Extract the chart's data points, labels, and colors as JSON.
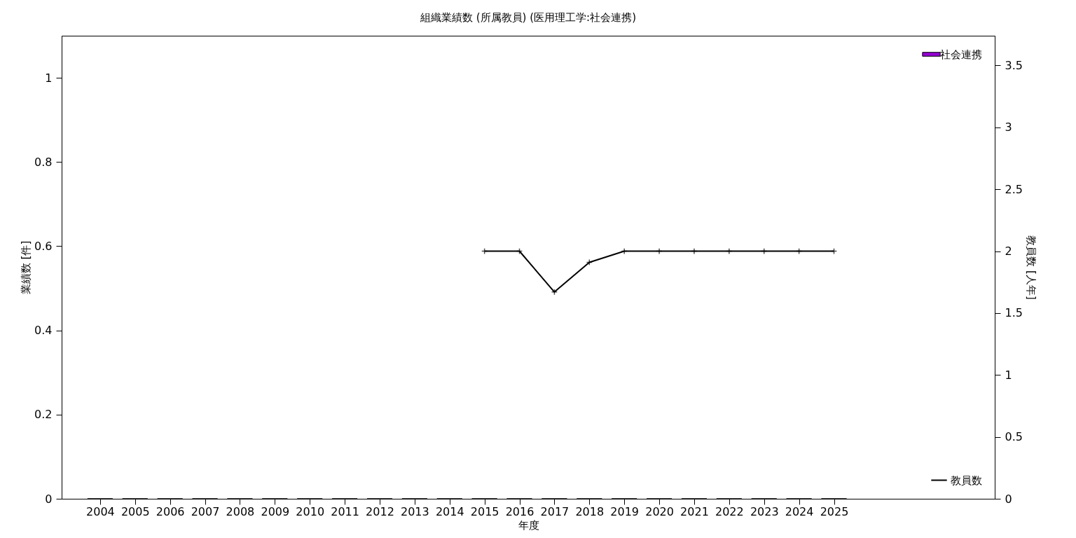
{
  "chart_data": {
    "type": "bar",
    "title": "組織業績数 (所属教員) (医用理工学:社会連携)",
    "xlabel": "年度",
    "ylabel": "業績数 [件]",
    "y2label": "教員数 [人年]",
    "x": [
      2004,
      2005,
      2006,
      2007,
      2008,
      2009,
      2010,
      2011,
      2012,
      2013,
      2014,
      2015,
      2016,
      2017,
      2018,
      2019,
      2020,
      2021,
      2022,
      2023,
      2024,
      2025
    ],
    "xlim": [
      2003,
      2029.5
    ],
    "xticks": [
      2004,
      2005,
      2006,
      2007,
      2008,
      2009,
      2010,
      2011,
      2012,
      2013,
      2014,
      2015,
      2016,
      2017,
      2018,
      2019,
      2020,
      2021,
      2022,
      2023,
      2024,
      2025
    ],
    "ylim": [
      0,
      1.1
    ],
    "yticks": [
      0,
      0.2,
      0.4,
      0.6,
      0.8,
      1
    ],
    "y2lim": [
      0,
      3.74
    ],
    "y2ticks": [
      0,
      0.5,
      1,
      1.5,
      2,
      2.5,
      3,
      3.5
    ],
    "series": [
      {
        "name": "社会連携",
        "color": "#9400d3",
        "values": [
          0,
          0,
          0,
          0,
          0,
          0,
          0,
          0,
          0,
          0,
          0,
          0,
          0,
          0,
          0,
          0,
          0,
          0,
          0,
          0,
          0,
          0
        ]
      },
      {
        "name": "教員数",
        "type": "line",
        "axis": "y2",
        "color": "#000000",
        "values": [
          null,
          null,
          null,
          null,
          null,
          null,
          null,
          null,
          null,
          null,
          null,
          2,
          2,
          1.67,
          1.91,
          2,
          2,
          2,
          2,
          2,
          2,
          2
        ]
      }
    ],
    "legend": "right",
    "grid": false,
    "marker": "cross",
    "line_style": "solid"
  }
}
